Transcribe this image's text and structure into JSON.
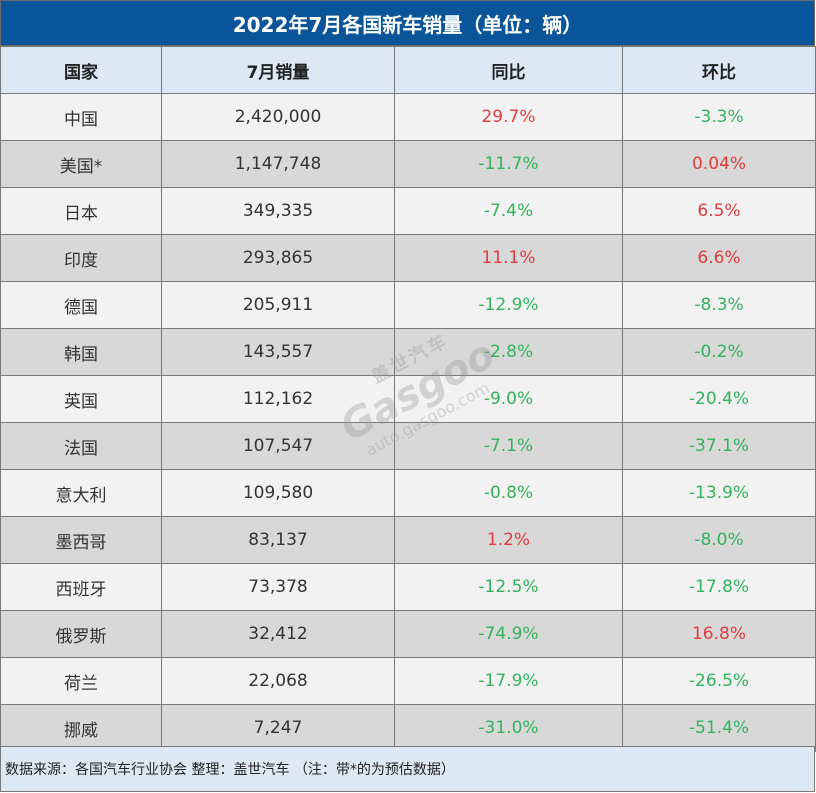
{
  "title": "2022年7月各国新车销量（单位：辆）",
  "headers": [
    "国家",
    "7月销量",
    "同比",
    "环比"
  ],
  "rows": [
    {
      "country": "中国",
      "sales": "2,420,000",
      "yoy": "29.7%",
      "mom": "-3.3%"
    },
    {
      "country": "美国*",
      "sales": "1,147,748",
      "yoy": "-11.7%",
      "mom": "0.04%"
    },
    {
      "country": "日本",
      "sales": "349,335",
      "yoy": "-7.4%",
      "mom": "6.5%"
    },
    {
      "country": "印度",
      "sales": "293,865",
      "yoy": "11.1%",
      "mom": "6.6%"
    },
    {
      "country": "德国",
      "sales": "205,911",
      "yoy": "-12.9%",
      "mom": "-8.3%"
    },
    {
      "country": "韩国",
      "sales": "143,557",
      "yoy": "-2.8%",
      "mom": "-0.2%"
    },
    {
      "country": "英国",
      "sales": "112,162",
      "yoy": "-9.0%",
      "mom": "-20.4%"
    },
    {
      "country": "法国",
      "sales": "107,547",
      "yoy": "-7.1%",
      "mom": "-37.1%"
    },
    {
      "country": "意大利",
      "sales": "109,580",
      "yoy": "-0.8%",
      "mom": "-13.9%"
    },
    {
      "country": "墨西哥",
      "sales": "83,137",
      "yoy": "1.2%",
      "mom": "-8.0%"
    },
    {
      "country": "西班牙",
      "sales": "73,378",
      "yoy": "-12.5%",
      "mom": "-17.8%"
    },
    {
      "country": "俄罗斯",
      "sales": "32,412",
      "yoy": "-74.9%",
      "mom": "16.8%"
    },
    {
      "country": "荷兰",
      "sales": "22,068",
      "yoy": "-17.9%",
      "mom": "-26.5%"
    },
    {
      "country": "挪威",
      "sales": "7,247",
      "yoy": "-31.0%",
      "mom": "-51.4%"
    }
  ],
  "footer": "数据来源：各国汽车行业协会 整理：盖世汽车 （注：带*的为预估数据）",
  "watermark": {
    "cn": "盖世汽车",
    "logo": "Gasgoo",
    "url": "auto.gasgoo.com"
  },
  "colors": {
    "title_bg": "#0a559a",
    "header_bg": "#dde8f5",
    "positive": "#e23c3c",
    "negative": "#33b25c"
  }
}
